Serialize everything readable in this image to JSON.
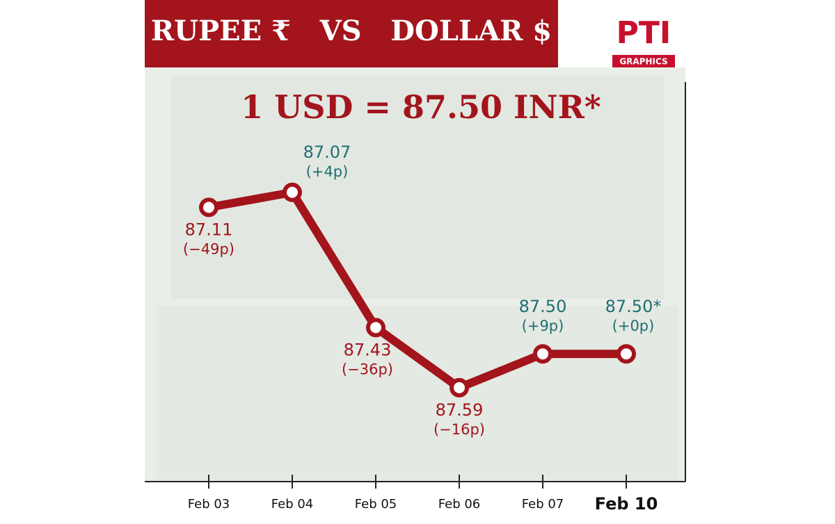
{
  "header": {
    "title": "RUPEE ₹   VS   DOLLAR $",
    "logo": "PTI",
    "logo_caption": "GRAPHICS"
  },
  "chart_data": {
    "type": "line",
    "subtitle": "1 USD = 87.50 INR*",
    "categories": [
      "Feb 03",
      "Feb 04",
      "Feb 05",
      "Feb 06",
      "Feb 07",
      "Feb 10"
    ],
    "values": [
      87.11,
      87.07,
      87.43,
      87.59,
      87.5,
      87.5
    ],
    "value_labels": [
      "87.11",
      "87.07",
      "87.43",
      "87.59",
      "87.50",
      "87.50*"
    ],
    "change_labels": [
      "(−49p)",
      "(+4p)",
      "(−36p)",
      "(−16p)",
      "(+9p)",
      "(+0p)"
    ],
    "label_colors": [
      "#a3141c",
      "#1f6f72",
      "#a3141c",
      "#a3141c",
      "#1f6f72",
      "#1f6f72"
    ],
    "color": "#a3141c",
    "ylim": [
      86.78,
      87.84
    ],
    "y_inverted": true
  }
}
